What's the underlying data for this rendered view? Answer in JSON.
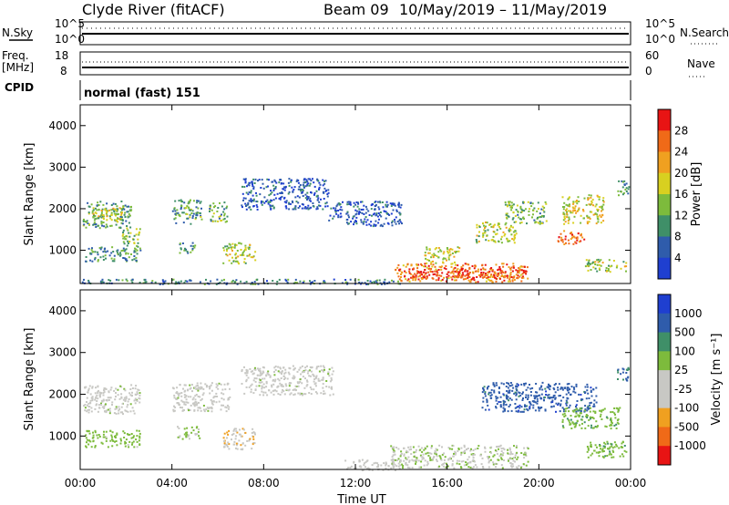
{
  "header": {
    "title": "Clyde River (fitACF)",
    "beam": "Beam 09",
    "dates": "10/May/2019 – 11/May/2019"
  },
  "nsky_panel": {
    "left_label": "N.Sky",
    "left_ticks": [
      "10^5",
      "10^0"
    ],
    "right_ticks": [
      "10^5",
      "10^0"
    ],
    "right_label": "N.Search"
  },
  "freq_panel": {
    "left_label_1": "Freq.",
    "left_label_2": "[MHz]",
    "left_ticks": [
      "18",
      "8"
    ],
    "right_ticks": [
      "60",
      "0"
    ],
    "right_label": "Nave"
  },
  "cpid_panel": {
    "label": "CPID",
    "value": "normal (fast) 151"
  },
  "x_axis": {
    "tick_labels": [
      "00:00",
      "04:00",
      "08:00",
      "12:00",
      "16:00",
      "20:00",
      "00:00"
    ],
    "label": "Time UT"
  },
  "colors": {
    "power_scale": [
      "#1f3fd0",
      "#2f5cab",
      "#3f8f68",
      "#7dbb3c",
      "#d8d020",
      "#f0a020",
      "#f06a18",
      "#e81414"
    ],
    "velocity_scale": [
      "#e81414",
      "#f06a18",
      "#f0a020",
      "#c8c8c4",
      "#c8c8c4",
      "#7dbb3c",
      "#3f8f68",
      "#2f5cab",
      "#1f3fd0"
    ]
  },
  "chart_data": [
    {
      "type": "heatmap",
      "panel": "power",
      "ylabel": "Slant Range [km]",
      "xlabel": "",
      "ylim": [
        200,
        4500
      ],
      "y_ticks": [
        "1000",
        "2000",
        "3000",
        "4000"
      ],
      "xlim": [
        0,
        24
      ],
      "colorbar": {
        "label": "Power [dB]",
        "ticks": [
          "4",
          "8",
          "12",
          "16",
          "20",
          "24",
          "28"
        ],
        "range": [
          0,
          32
        ]
      },
      "regions": [
        {
          "t0": 0.1,
          "t1": 2.2,
          "r0": 1550,
          "r1": 2200,
          "level": 0.35
        },
        {
          "t0": 0.5,
          "t1": 1.8,
          "r0": 1700,
          "r1": 2050,
          "level": 0.55
        },
        {
          "t0": 0.2,
          "t1": 2.6,
          "r0": 750,
          "r1": 1100,
          "level": 0.3
        },
        {
          "t0": 1.8,
          "t1": 2.6,
          "r0": 1100,
          "r1": 1550,
          "level": 0.45
        },
        {
          "t0": 4.0,
          "t1": 5.3,
          "r0": 1650,
          "r1": 2250,
          "level": 0.35
        },
        {
          "t0": 5.6,
          "t1": 6.4,
          "r0": 1700,
          "r1": 2200,
          "level": 0.4
        },
        {
          "t0": 4.2,
          "t1": 5.0,
          "r0": 950,
          "r1": 1200,
          "level": 0.3
        },
        {
          "t0": 6.2,
          "t1": 7.6,
          "r0": 700,
          "r1": 1200,
          "level": 0.5
        },
        {
          "t0": 7.0,
          "t1": 10.8,
          "r0": 2000,
          "r1": 2750,
          "level": 0.15
        },
        {
          "t0": 10.8,
          "t1": 14.0,
          "r0": 1600,
          "r1": 2200,
          "level": 0.15
        },
        {
          "t0": 13.7,
          "t1": 19.5,
          "r0": 250,
          "r1": 700,
          "level": 0.75
        },
        {
          "t0": 14.3,
          "t1": 17.6,
          "r0": 350,
          "r1": 600,
          "level": 0.95
        },
        {
          "t0": 17.6,
          "t1": 19.4,
          "r0": 350,
          "r1": 650,
          "level": 0.85
        },
        {
          "t0": 15.0,
          "t1": 16.5,
          "r0": 700,
          "r1": 1100,
          "level": 0.55
        },
        {
          "t0": 17.2,
          "t1": 19.0,
          "r0": 1200,
          "r1": 1700,
          "level": 0.5
        },
        {
          "t0": 18.5,
          "t1": 20.3,
          "r0": 1650,
          "r1": 2200,
          "level": 0.4
        },
        {
          "t0": 20.8,
          "t1": 22.0,
          "r0": 1150,
          "r1": 1500,
          "level": 0.8
        },
        {
          "t0": 21.0,
          "t1": 22.8,
          "r0": 1650,
          "r1": 2350,
          "level": 0.55
        },
        {
          "t0": 22.0,
          "t1": 23.8,
          "r0": 500,
          "r1": 800,
          "level": 0.5
        },
        {
          "t0": 23.4,
          "t1": 23.9,
          "r0": 2300,
          "r1": 2700,
          "level": 0.3
        },
        {
          "t0": 0.0,
          "t1": 14.0,
          "r0": 200,
          "r1": 320,
          "level": 0.25
        }
      ]
    },
    {
      "type": "heatmap",
      "panel": "velocity",
      "ylabel": "Slant Range [km]",
      "xlabel": "Time UT",
      "ylim": [
        200,
        4500
      ],
      "y_ticks": [
        "1000",
        "2000",
        "3000",
        "4000"
      ],
      "xlim": [
        0,
        24
      ],
      "colorbar": {
        "label": "Velocity [m s⁻¹]",
        "ticks": [
          "1000",
          "500",
          "100",
          "25",
          "-25",
          "-100",
          "-500",
          "-1000"
        ],
        "range": [
          -1200,
          1200
        ]
      },
      "regions": [
        {
          "t0": 0.1,
          "t1": 2.6,
          "r0": 1550,
          "r1": 2250,
          "vel": 0
        },
        {
          "t0": 4.0,
          "t1": 6.5,
          "r0": 1600,
          "r1": 2300,
          "vel": 0
        },
        {
          "t0": 7.0,
          "t1": 11.0,
          "r0": 2000,
          "r1": 2700,
          "vel": 0
        },
        {
          "t0": 0.2,
          "t1": 2.6,
          "r0": 750,
          "r1": 1150,
          "vel": 250
        },
        {
          "t0": 4.2,
          "t1": 5.2,
          "r0": 950,
          "r1": 1250,
          "vel": 200
        },
        {
          "t0": 6.2,
          "t1": 7.6,
          "r0": 700,
          "r1": 1200,
          "vel": -300
        },
        {
          "t0": 13.5,
          "t1": 19.5,
          "r0": 250,
          "r1": 800,
          "vel": 80
        },
        {
          "t0": 17.5,
          "t1": 22.5,
          "r0": 1600,
          "r1": 2300,
          "vel": 800
        },
        {
          "t0": 21.0,
          "t1": 23.5,
          "r0": 1200,
          "r1": 1700,
          "vel": 300
        },
        {
          "t0": 22.0,
          "t1": 23.8,
          "r0": 500,
          "r1": 900,
          "vel": 300
        },
        {
          "t0": 23.4,
          "t1": 23.9,
          "r0": 2300,
          "r1": 2700,
          "vel": 700
        },
        {
          "t0": 11.5,
          "t1": 14.0,
          "r0": 200,
          "r1": 450,
          "vel": -200
        }
      ]
    }
  ]
}
